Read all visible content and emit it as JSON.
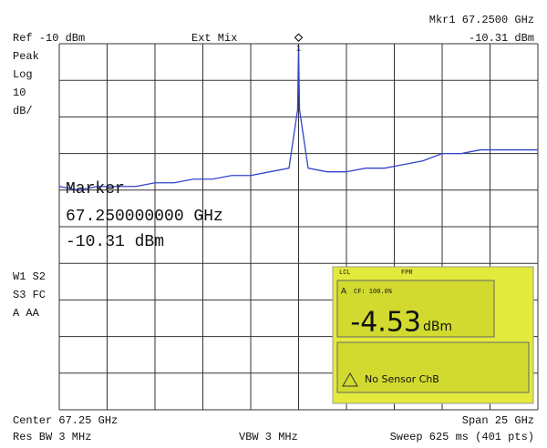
{
  "chart_data": {
    "type": "line",
    "header": {
      "ref": "Ref -10 dBm",
      "mode": "Ext Mix",
      "marker_readout": "Mkr1 67.2500 GHz",
      "marker_level": "-10.31 dBm"
    },
    "left_labels": [
      "Peak",
      "Log",
      "10",
      "dB/"
    ],
    "trace_labels": [
      "W1 S2",
      "S3 FC",
      "A  AA"
    ],
    "marker_box": [
      "Marker",
      "67.250000000 GHz",
      "-10.31 dBm"
    ],
    "marker": {
      "label": "1",
      "x": 67.25,
      "y": -10.31
    },
    "footer": {
      "center": "Center 67.25 GHz",
      "span": "Span 25 GHz",
      "rbw": "Res BW 3 MHz",
      "vbw": "VBW 3 MHz",
      "sweep": "Sweep 625 ms (401 pts)"
    },
    "inset": {
      "top_left": "LCL",
      "top_mid": "FPR",
      "channel": "A",
      "cf": "CF: 100.0%",
      "reading": "-4.53",
      "unit": "dBm",
      "status": "No Sensor ChB"
    },
    "xlim": [
      54.75,
      79.75
    ],
    "ylim": [
      -110,
      -10
    ],
    "grid": true,
    "series": [
      {
        "color": "#3344cc",
        "x": [
          54.75,
          55.75,
          56.75,
          57.75,
          58.75,
          59.75,
          60.75,
          61.75,
          62.75,
          63.75,
          64.75,
          65.75,
          66.75,
          67.2,
          67.25,
          67.3,
          67.75,
          68.75,
          69.75,
          70.75,
          71.75,
          72.75,
          73.75,
          74.75,
          75.75,
          76.75,
          77.75,
          78.75,
          79.75
        ],
        "values": [
          -49,
          -50,
          -49,
          -49,
          -49,
          -48,
          -48,
          -47,
          -47,
          -46,
          -46,
          -45,
          -44,
          -28,
          -10.31,
          -28,
          -44,
          -45,
          -45,
          -44,
          -44,
          -43,
          -42,
          -40,
          -40,
          -39,
          -39,
          -39,
          -39
        ]
      }
    ]
  }
}
